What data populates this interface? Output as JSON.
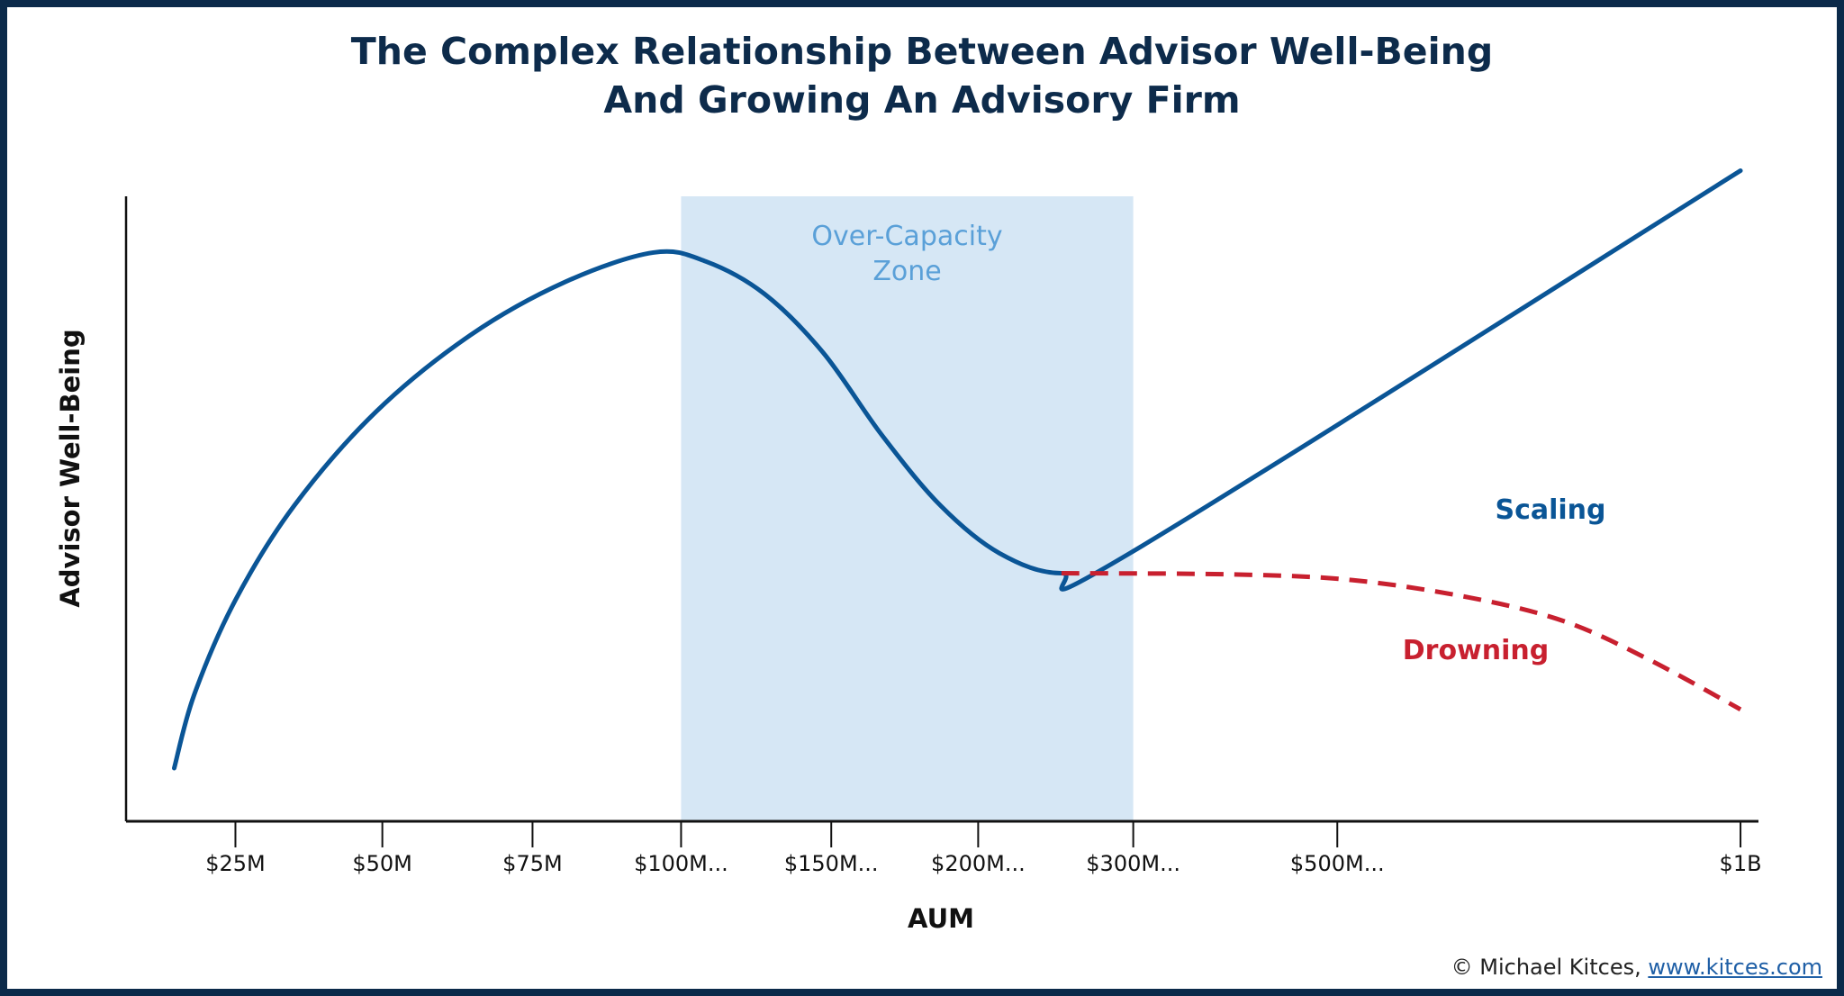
{
  "title": {
    "line1": "The Complex Relationship Between Advisor Well-Being",
    "line2": "And Growing An Advisory Firm"
  },
  "credit": {
    "text": "© Michael Kitces,",
    "link": "www.kitces.com"
  },
  "colors": {
    "frame": "#0b2a4a",
    "title": "#0d2b4b",
    "scaling": "#0a5596",
    "drowning": "#c8202f",
    "zone_fill": "#d6e7f5",
    "zone_text": "#5aa0d8"
  },
  "chart_data": {
    "type": "line",
    "title": "The Complex Relationship Between Advisor Well-Being And Growing An Advisory Firm",
    "xlabel": "AUM",
    "ylabel": "Advisor Well-Being",
    "xlim": [
      0,
      100
    ],
    "ylim": [
      0,
      100
    ],
    "grid": false,
    "x_ticks": [
      {
        "label": "$25M",
        "x": 6.7
      },
      {
        "label": "$50M",
        "x": 15.7
      },
      {
        "label": "$75M",
        "x": 24.9
      },
      {
        "label": "$100M...",
        "x": 34.0
      },
      {
        "label": "$150M...",
        "x": 43.2
      },
      {
        "label": "$200M...",
        "x": 52.2
      },
      {
        "label": "$300M...",
        "x": 61.7
      },
      {
        "label": "$500M...",
        "x": 74.2
      },
      {
        "label": "$1B",
        "x": 98.9
      }
    ],
    "shaded_region": {
      "label_line1": "Over-Capacity",
      "label_line2": "Zone",
      "x_start": 34.0,
      "x_end": 61.7
    },
    "series": [
      {
        "name": "Scaling",
        "style": "solid",
        "points": [
          [
            2.95,
            8.5
          ],
          [
            4.18,
            20.3
          ],
          [
            6.7,
            35.4
          ],
          [
            10.3,
            50.5
          ],
          [
            15.3,
            65.5
          ],
          [
            21.1,
            77.8
          ],
          [
            26.9,
            86.3
          ],
          [
            32.3,
            91.0
          ],
          [
            35.5,
            89.6
          ],
          [
            39.1,
            84.4
          ],
          [
            42.7,
            75.0
          ],
          [
            46.3,
            61.8
          ],
          [
            49.9,
            50.5
          ],
          [
            53.5,
            42.9
          ],
          [
            57.3,
            39.7
          ],
          [
            61.5,
            42.9
          ],
          [
            98.9,
            104.1
          ]
        ]
      },
      {
        "name": "Drowning",
        "style": "dashed",
        "points": [
          [
            57.3,
            39.7
          ],
          [
            67.9,
            39.5
          ],
          [
            75.1,
            38.6
          ],
          [
            82.3,
            35.8
          ],
          [
            88.1,
            32.0
          ],
          [
            93.2,
            26.0
          ],
          [
            98.9,
            17.9
          ]
        ]
      }
    ]
  }
}
